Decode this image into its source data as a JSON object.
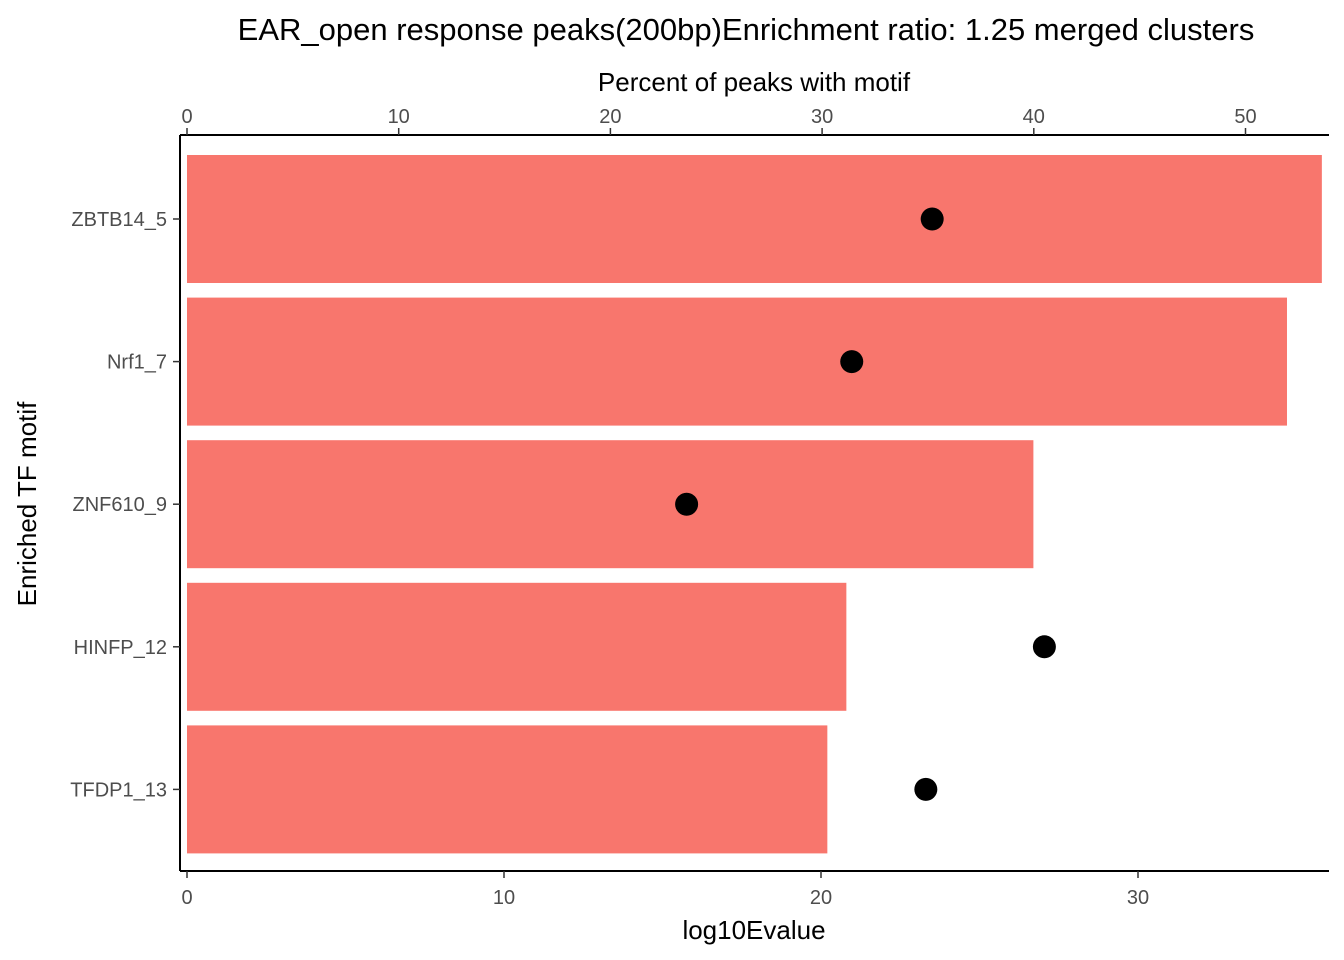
{
  "chart_data": {
    "type": "bar",
    "title": "EAR_open response peaks(200bp)Enrichment ratio: 1.25  merged clusters",
    "xlabel": "log10Evalue",
    "ylabel": "Enriched TF motif",
    "secondary_xlabel": "Percent of peaks with motif",
    "categories": [
      "ZBTB14_5",
      "Nrf1_7",
      "ZNF610_9",
      "HINFP_12",
      "TFDP1_13"
    ],
    "series": [
      {
        "type": "bar",
        "axis": "bottom",
        "color": "#F8766D",
        "values": [
          35.8,
          34.7,
          26.7,
          20.8,
          20.2
        ]
      },
      {
        "type": "point",
        "axis": "top",
        "color": "#000000",
        "values": [
          35.2,
          31.4,
          23.6,
          40.5,
          34.9
        ]
      }
    ],
    "xlim": [
      0,
      36
    ],
    "x_ticks": [
      0,
      10,
      20,
      30
    ],
    "secondary_xlim": [
      0,
      54
    ],
    "secondary_x_ticks": [
      0,
      10,
      20,
      30,
      40,
      50
    ],
    "grid": false,
    "legend": "none"
  }
}
